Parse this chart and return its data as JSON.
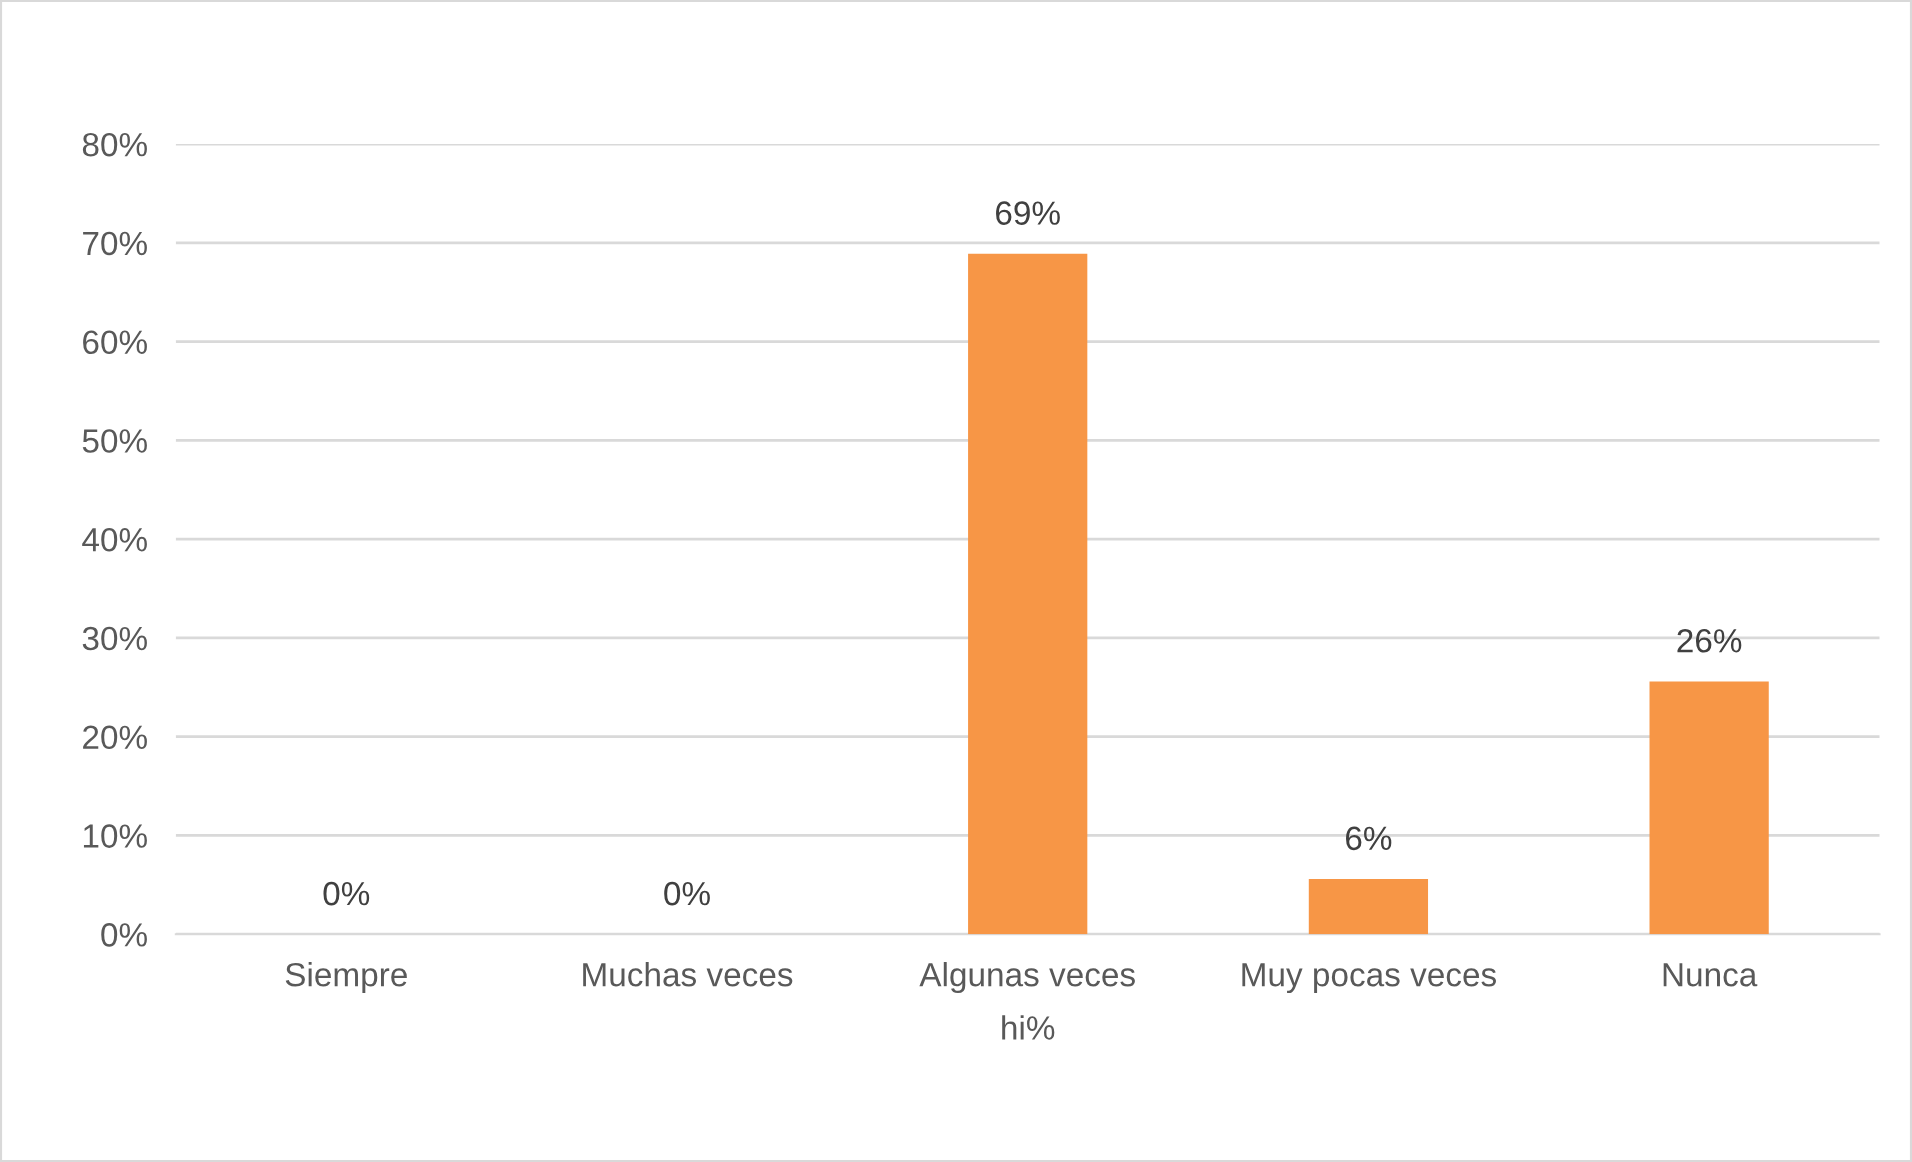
{
  "chart_data": {
    "type": "bar",
    "xlabel": "hi%",
    "categories": [
      "Siempre",
      "Muchas veces",
      "Algunas veces",
      "Muy pocas veces",
      "Nunca"
    ],
    "values": [
      0,
      0,
      68.9,
      5.6,
      25.6
    ],
    "value_labels": [
      "0%",
      "0%",
      "69%",
      "6%",
      "26%"
    ],
    "color": "#f79646",
    "ylim": [
      0,
      80
    ],
    "yticks": [
      {
        "value": 0,
        "label": "0%"
      },
      {
        "value": 10,
        "label": "10%"
      },
      {
        "value": 20,
        "label": "20%"
      },
      {
        "value": 30,
        "label": "30%"
      },
      {
        "value": 40,
        "label": "40%"
      },
      {
        "value": 50,
        "label": "50%"
      },
      {
        "value": 60,
        "label": "60%"
      },
      {
        "value": 70,
        "label": "70%"
      },
      {
        "value": 80,
        "label": "80%"
      }
    ],
    "grid": "y",
    "legend": false
  }
}
